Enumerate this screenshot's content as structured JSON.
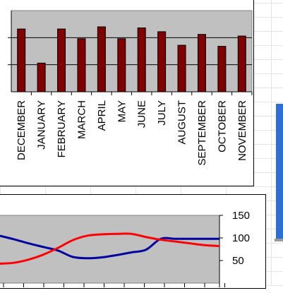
{
  "chart_data": [
    {
      "type": "bar",
      "categories": [
        "DECEMBER",
        "JANUARY",
        "FEBRUARY",
        "MARCH",
        "APRIL",
        "MAY",
        "JUNE",
        "JULY",
        "AUGUST",
        "SEPTEMBER",
        "OCTOBER",
        "NOVEMBER"
      ],
      "values": [
        116,
        53,
        116,
        98,
        120,
        98,
        118,
        111,
        86,
        106,
        84,
        103
      ],
      "ylim": [
        0,
        150
      ],
      "grid": true,
      "colors": {
        "bar": "#800000",
        "plot_bg": "#c0c0c0"
      }
    },
    {
      "type": "line",
      "x": [
        0,
        1,
        2,
        3,
        4,
        5,
        6,
        7,
        8,
        9,
        10,
        11,
        12,
        13,
        14,
        15
      ],
      "series": [
        {
          "values": [
            105,
            97,
            88,
            80,
            72,
            58,
            55,
            57,
            62,
            68,
            74,
            98,
            98,
            98,
            98,
            98
          ],
          "color": "#0000a0"
        },
        {
          "values": [
            43,
            45,
            52,
            63,
            78,
            95,
            105,
            108,
            109,
            109,
            102,
            96,
            92,
            88,
            84,
            82
          ],
          "color": "#ff0000"
        }
      ],
      "yticks": [
        "150",
        "100",
        "50"
      ],
      "ylim": [
        0,
        150
      ],
      "colors": {
        "plot_bg": "#c0c0c0"
      }
    }
  ]
}
